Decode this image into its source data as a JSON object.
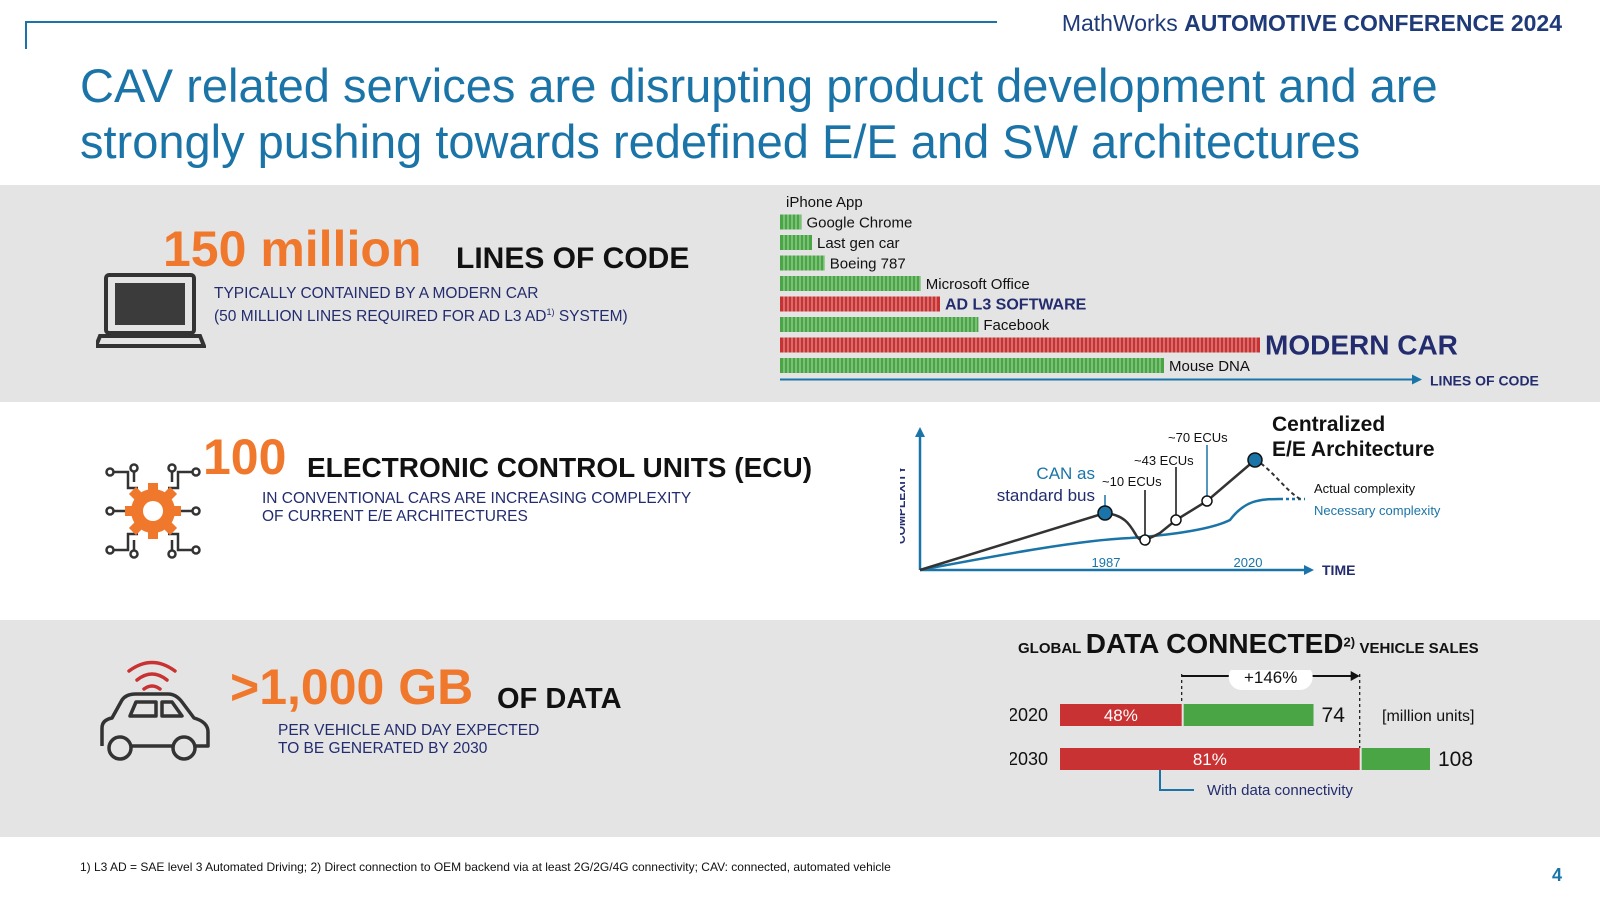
{
  "header": {
    "brand_light": "MathWorks",
    "brand_bold": "AUTOMOTIVE CONFERENCE 2024",
    "title_line1": "CAV related services are disrupting product development and are",
    "title_line2": "strongly pushing towards redefined E/E and SW architectures"
  },
  "section1": {
    "big_number": "150 million",
    "big_label": "LINES OF CODE",
    "sub_line1": "TYPICALLY CONTAINED BY A MODERN CAR",
    "sub_line2_pre": "(50 MILLION LINES REQUIRED FOR AD L3 AD",
    "sub_line2_sup": "1)",
    "sub_line2_post": " SYSTEM)"
  },
  "section2": {
    "big_number": "100",
    "big_label": "ELECTRONIC CONTROL UNITS (ECU)",
    "sub_line1": "IN CONVENTIONAL CARS ARE INCREASING COMPLEXITY",
    "sub_line2": "OF CURRENT E/E ARCHITECTURES"
  },
  "section3": {
    "big_number": ">1,000 GB",
    "big_label": "OF DATA",
    "sub_line1": "PER VEHICLE AND DAY EXPECTED",
    "sub_line2": "TO BE GENERATED BY 2030"
  },
  "colors": {
    "green": "#4aa645",
    "red": "#c83232",
    "orange": "#f0782d",
    "blue": "#1a74a8",
    "navy": "#232c6e"
  },
  "chart_data": [
    {
      "type": "bar",
      "orientation": "horizontal",
      "axis_label": "LINES OF CODE",
      "categories": [
        "iPhone App",
        "Google Chrome",
        "Last gen car",
        "Boeing 787",
        "Microsoft Office",
        "AD L3 SOFTWARE",
        "Facebook",
        "MODERN CAR",
        "Mouse DNA"
      ],
      "values": [
        0.04,
        6.7,
        10,
        14,
        44,
        50,
        62,
        150,
        120
      ],
      "highlight": [
        false,
        false,
        false,
        false,
        false,
        true,
        false,
        true,
        false
      ]
    },
    {
      "type": "line",
      "xlabel": "TIME",
      "ylabel": "COMPLEXITY",
      "x_ticks": [
        "1987",
        "2020"
      ],
      "annotations": {
        "can": "CAN as\nstandard bus",
        "ecu10": "~10 ECUs",
        "ecu43": "~43 ECUs",
        "ecu70": "~70 ECUs",
        "central": "Centralized\nE/E Architecture"
      },
      "series": [
        {
          "name": "Actual complexity"
        },
        {
          "name": "Necessary complexity"
        }
      ]
    },
    {
      "type": "bar",
      "orientation": "horizontal",
      "stacked": true,
      "title_pre": "GLOBAL",
      "title_main": "DATA CONNECTED",
      "title_sup": "2)",
      "title_post": "VEHICLE SALES",
      "unit": "[million units]",
      "categories": [
        "2020",
        "2030"
      ],
      "totals": [
        74,
        108
      ],
      "connected_share_labels": [
        "48%",
        "81%"
      ],
      "connected_share": [
        0.48,
        0.81
      ],
      "growth_label": "+146%",
      "connectivity_label": "With data connectivity"
    }
  ],
  "footnote": "1) L3 AD = SAE level 3 Automated Driving; 2)  Direct connection to OEM backend via at least 2G/2G/4G connectivity; CAV: connected, automated vehicle",
  "page_number": "4"
}
